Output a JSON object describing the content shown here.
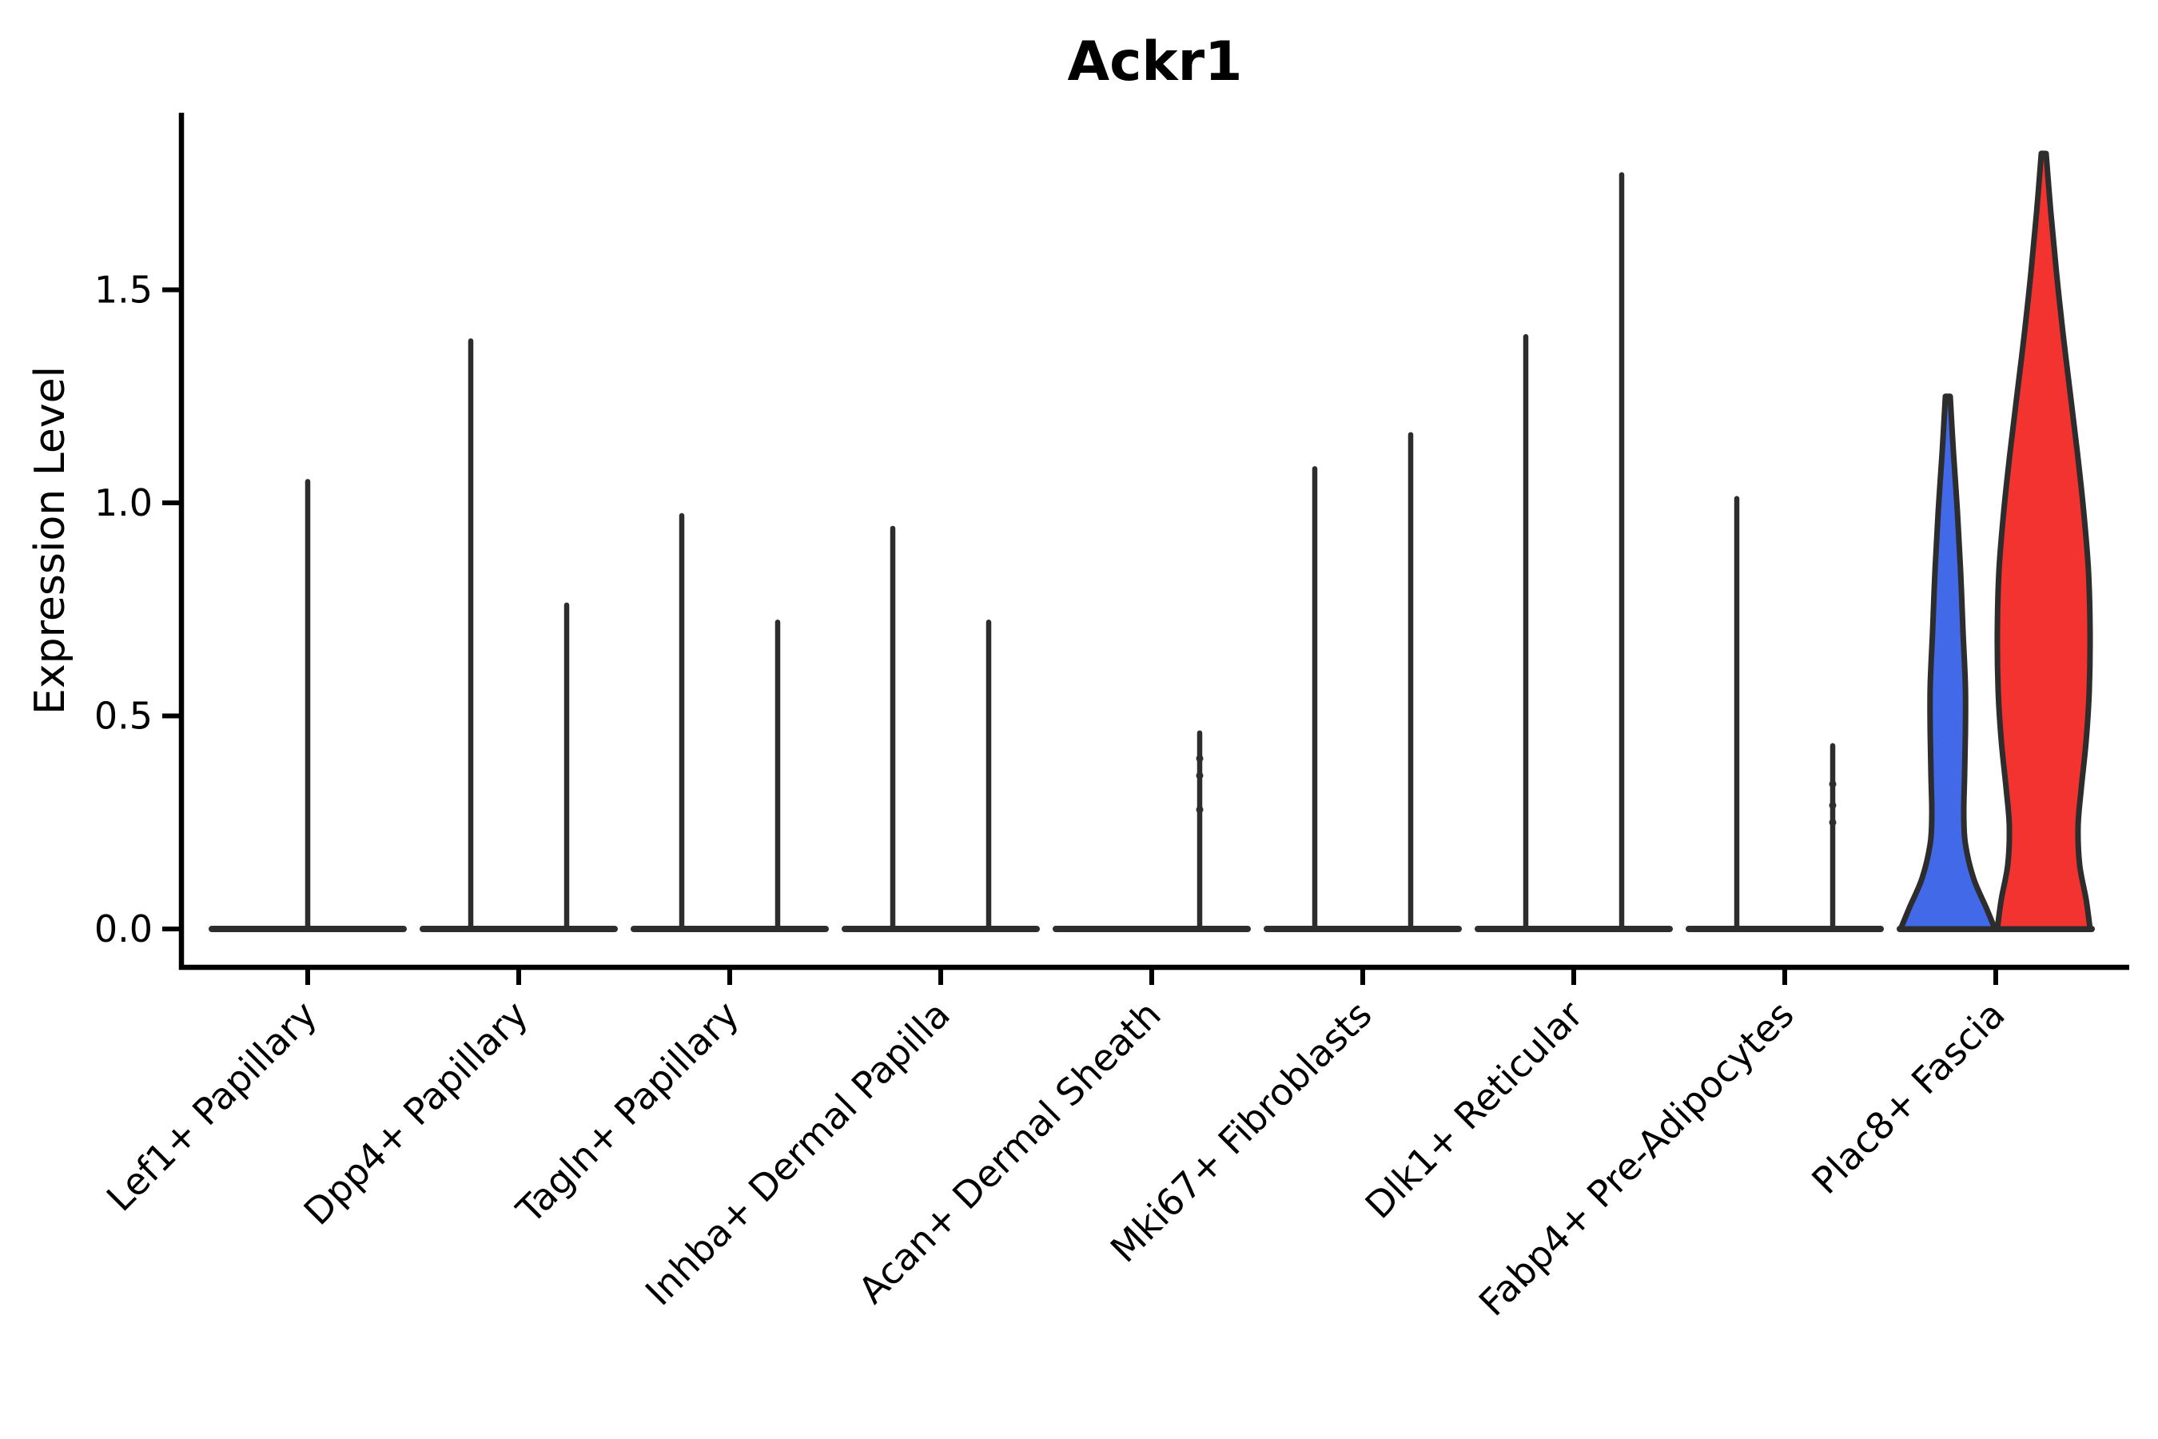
{
  "figure": {
    "title": "Ackr1",
    "y_axis_label": "Expression Level"
  },
  "chart_data": {
    "type": "violin",
    "title": "Ackr1",
    "xlabel": "",
    "ylabel": "Expression Level",
    "ylim": [
      -0.09,
      1.92
    ],
    "grid": false,
    "legend_position": "none",
    "y_ticks": [
      {
        "value": 0.0,
        "label": "0.0"
      },
      {
        "value": 0.5,
        "label": "0.5"
      },
      {
        "value": 1.0,
        "label": "1.0"
      },
      {
        "value": 1.5,
        "label": "1.5"
      }
    ],
    "categories": [
      "Lef1+ Papillary",
      "Dpp4+ Papillary",
      "Tagln+ Papillary",
      "Inhba+ Dermal Papilla",
      "Acan+ Dermal Sheath",
      "Mki67+ Fibroblasts",
      "Dlk1+ Reticular",
      "Fabp4+ Pre-Adipocytes",
      "Plac8+ Fascia"
    ],
    "baseline_value": 0.0,
    "colors": {
      "violin_line": "#2d2d2d",
      "axis": "#000000",
      "text": "#000000",
      "blue_fill": "#4169E8",
      "red_fill": "#F23330"
    },
    "violins": [
      {
        "category_index": 0,
        "category": "Lef1+ Papillary",
        "position": "center",
        "style": "spike",
        "max_expression": 1.05
      },
      {
        "category_index": 1,
        "category": "Dpp4+ Papillary",
        "position": "left",
        "style": "spike",
        "max_expression": 1.38
      },
      {
        "category_index": 1,
        "category": "Dpp4+ Papillary",
        "position": "right",
        "style": "spike",
        "max_expression": 0.76
      },
      {
        "category_index": 2,
        "category": "Tagln+ Papillary",
        "position": "left",
        "style": "spike",
        "max_expression": 0.97
      },
      {
        "category_index": 2,
        "category": "Tagln+ Papillary",
        "position": "right",
        "style": "spike",
        "max_expression": 0.72
      },
      {
        "category_index": 3,
        "category": "Inhba+ Dermal Papilla",
        "position": "left",
        "style": "spike",
        "max_expression": 0.94
      },
      {
        "category_index": 3,
        "category": "Inhba+ Dermal Papilla",
        "position": "right",
        "style": "spike",
        "max_expression": 0.72
      },
      {
        "category_index": 4,
        "category": "Acan+ Dermal Sheath",
        "position": "right",
        "style": "spike",
        "max_expression": 0.46,
        "points": [
          0.4,
          0.36,
          0.28
        ]
      },
      {
        "category_index": 5,
        "category": "Mki67+ Fibroblasts",
        "position": "left",
        "style": "spike",
        "max_expression": 1.08
      },
      {
        "category_index": 5,
        "category": "Mki67+ Fibroblasts",
        "position": "right",
        "style": "spike",
        "max_expression": 1.16
      },
      {
        "category_index": 6,
        "category": "Dlk1+ Reticular",
        "position": "left",
        "style": "spike",
        "max_expression": 1.39
      },
      {
        "category_index": 6,
        "category": "Dlk1+ Reticular",
        "position": "right",
        "style": "spike",
        "max_expression": 1.77
      },
      {
        "category_index": 7,
        "category": "Fabp4+ Pre-Adipocytes",
        "position": "left",
        "style": "spike",
        "max_expression": 1.01
      },
      {
        "category_index": 7,
        "category": "Fabp4+ Pre-Adipocytes",
        "position": "right",
        "style": "spike",
        "max_expression": 0.43,
        "points": [
          0.34,
          0.29,
          0.25
        ]
      },
      {
        "category_index": 8,
        "category": "Plac8+ Fascia",
        "position": "left",
        "style": "filled",
        "max_expression": 1.25,
        "fill": "#4169E8",
        "profile": [
          [
            1.25,
            3
          ],
          [
            1.12,
            7
          ],
          [
            0.98,
            12
          ],
          [
            0.84,
            16
          ],
          [
            0.7,
            19
          ],
          [
            0.57,
            22
          ],
          [
            0.46,
            22
          ],
          [
            0.36,
            21
          ],
          [
            0.27,
            20
          ],
          [
            0.2,
            22
          ],
          [
            0.12,
            32
          ],
          [
            0.05,
            48
          ],
          [
            0.0,
            59
          ]
        ]
      },
      {
        "category_index": 8,
        "category": "Plac8+ Fascia",
        "position": "right",
        "style": "filled",
        "max_expression": 1.82,
        "fill": "#F23330",
        "profile": [
          [
            1.82,
            3
          ],
          [
            1.68,
            9
          ],
          [
            1.54,
            16
          ],
          [
            1.4,
            24
          ],
          [
            1.26,
            33
          ],
          [
            1.12,
            42
          ],
          [
            0.98,
            50
          ],
          [
            0.84,
            56
          ],
          [
            0.7,
            58
          ],
          [
            0.56,
            57
          ],
          [
            0.44,
            53
          ],
          [
            0.33,
            47
          ],
          [
            0.24,
            43
          ],
          [
            0.15,
            45
          ],
          [
            0.07,
            53
          ],
          [
            0.0,
            58
          ]
        ]
      }
    ]
  }
}
